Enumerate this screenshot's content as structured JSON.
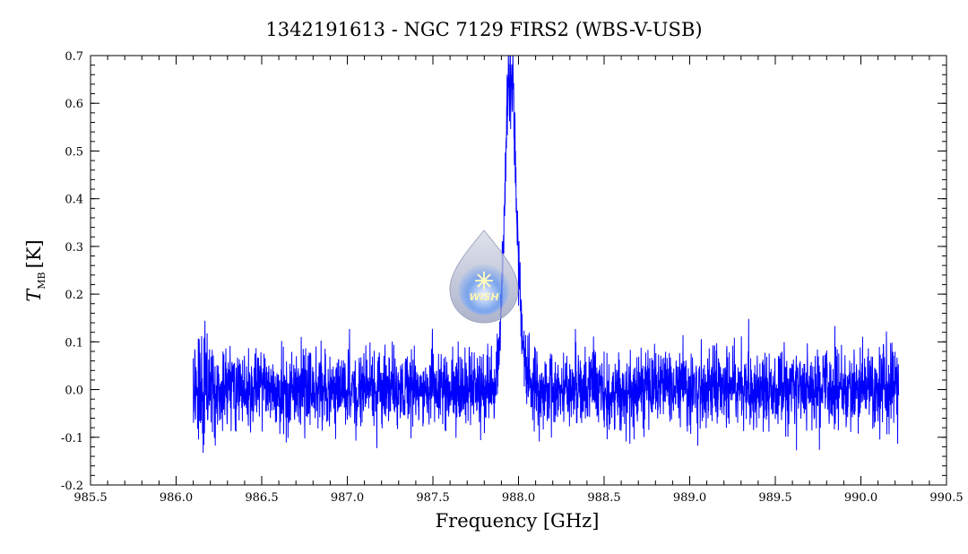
{
  "chart_data": {
    "type": "line",
    "title": "1342191613 - NGC 7129 FIRS2 (WBS-V-USB)",
    "xlabel": "Frequency [GHz]",
    "ylabel_main": "T",
    "ylabel_sub": "MB",
    "ylabel_unit": "[K]",
    "xlim": [
      985.5,
      990.5
    ],
    "ylim": [
      -0.2,
      0.7
    ],
    "x_ticks": [
      "985.5",
      "986.0",
      "986.5",
      "987.0",
      "987.5",
      "988.0",
      "988.5",
      "989.0",
      "989.5",
      "990.0",
      "990.5"
    ],
    "y_ticks": [
      "-0.2",
      "-0.1",
      "0.0",
      "0.1",
      "0.2",
      "0.3",
      "0.4",
      "0.5",
      "0.6",
      "0.7"
    ],
    "series": [
      {
        "color": "#0000ff",
        "x_start": 986.1,
        "x_end": 990.22,
        "baseline_noise_rms": 0.04,
        "line_center": 987.95,
        "line_peak": 0.61,
        "line_width_ghz": 0.03
      }
    ],
    "grid": false
  },
  "logo": {
    "name": "wish-logo",
    "text": "WISH"
  },
  "colors": {
    "series": "#0000ff",
    "axes": "#000000",
    "background": "#ffffff"
  }
}
